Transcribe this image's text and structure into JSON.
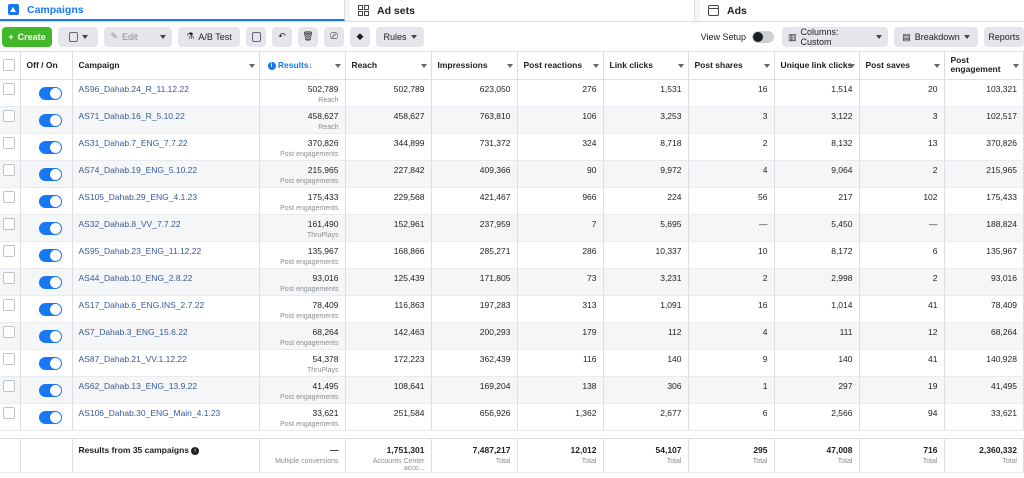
{
  "tabs": {
    "campaigns": "Campaigns",
    "adsets": "Ad sets",
    "ads": "Ads"
  },
  "toolbar": {
    "create": "Create",
    "edit": "Edit",
    "ab_test": "A/B Test",
    "rules": "Rules",
    "view_setup": "View Setup",
    "columns": "Columns: Custom",
    "breakdown": "Breakdown",
    "reports": "Reports"
  },
  "headers": {
    "off_on": "Off / On",
    "campaign": "Campaign",
    "results": "Results",
    "reach": "Reach",
    "impressions": "Impressions",
    "post_reactions": "Post reactions",
    "link_clicks": "Link clicks",
    "post_shares": "Post shares",
    "unique_link_clicks": "Unique link clicks",
    "post_saves": "Post saves",
    "post_engagement": "Post engagement"
  },
  "rows": [
    {
      "name": "AS96_Dahab.24_R_11.12.22",
      "results": "502,789",
      "type": "Reach",
      "reach": "502,789",
      "impr": "623,050",
      "react": "276",
      "clicks": "1,531",
      "shares": "16",
      "unique": "1,514",
      "saves": "20",
      "eng": "103,321"
    },
    {
      "name": "AS71_Dahab.16_R_5.10.22",
      "results": "458,627",
      "type": "Reach",
      "reach": "458,627",
      "impr": "763,810",
      "react": "106",
      "clicks": "3,253",
      "shares": "3",
      "unique": "3,122",
      "saves": "3",
      "eng": "102,517"
    },
    {
      "name": "AS31_Dahab.7_ENG_7.7.22",
      "results": "370,826",
      "type": "Post engagements",
      "reach": "344,899",
      "impr": "731,372",
      "react": "324",
      "clicks": "8,718",
      "shares": "2",
      "unique": "8,132",
      "saves": "13",
      "eng": "370,826"
    },
    {
      "name": "AS74_Dahab.19_ENG_5.10.22",
      "results": "215,965",
      "type": "Post engagements",
      "reach": "227,842",
      "impr": "409,366",
      "react": "90",
      "clicks": "9,972",
      "shares": "4",
      "unique": "9,064",
      "saves": "2",
      "eng": "215,965"
    },
    {
      "name": "AS105_Dahab.29_ENG_4.1.23",
      "results": "175,433",
      "type": "Post engagements",
      "reach": "229,568",
      "impr": "421,467",
      "react": "966",
      "clicks": "224",
      "shares": "56",
      "unique": "217",
      "saves": "102",
      "eng": "175,433"
    },
    {
      "name": "AS32_Dahab.8_VV_7.7.22",
      "results": "161,490",
      "type": "ThruPlays",
      "reach": "152,961",
      "impr": "237,959",
      "react": "7",
      "clicks": "5,695",
      "shares": "—",
      "unique": "5,450",
      "saves": "—",
      "eng": "188,824"
    },
    {
      "name": "AS95_Dahab.23_ENG_11.12.22",
      "results": "135,967",
      "type": "Post engagements",
      "reach": "168,866",
      "impr": "285,271",
      "react": "286",
      "clicks": "10,337",
      "shares": "10",
      "unique": "8,172",
      "saves": "6",
      "eng": "135,967"
    },
    {
      "name": "AS44_Dahab.10_ENG_2.8.22",
      "results": "93,016",
      "type": "Post engagements",
      "reach": "125,439",
      "impr": "171,805",
      "react": "73",
      "clicks": "3,231",
      "shares": "2",
      "unique": "2,998",
      "saves": "2",
      "eng": "93,016"
    },
    {
      "name": "AS17_Dahab.6_ENG.INS_2.7.22",
      "results": "78,409",
      "type": "Post engagements",
      "reach": "116,863",
      "impr": "197,283",
      "react": "313",
      "clicks": "1,091",
      "shares": "16",
      "unique": "1,014",
      "saves": "41",
      "eng": "78,409"
    },
    {
      "name": "AS7_Dahab.3_ENG_15.6.22",
      "results": "68,264",
      "type": "Post engagements",
      "reach": "142,463",
      "impr": "200,293",
      "react": "179",
      "clicks": "112",
      "shares": "4",
      "unique": "111",
      "saves": "12",
      "eng": "68,264"
    },
    {
      "name": "AS87_Dahab.21_VV.1.12.22",
      "results": "54,378",
      "type": "ThruPlays",
      "reach": "172,223",
      "impr": "362,439",
      "react": "116",
      "clicks": "140",
      "shares": "9",
      "unique": "140",
      "saves": "41",
      "eng": "140,928"
    },
    {
      "name": "AS62_Dahab.13_ENG_13.9.22",
      "results": "41,495",
      "type": "Post engagements",
      "reach": "108,641",
      "impr": "169,204",
      "react": "138",
      "clicks": "306",
      "shares": "1",
      "unique": "297",
      "saves": "19",
      "eng": "41,495"
    },
    {
      "name": "AS106_Dahab.30_ENG_Main_4.1.23",
      "results": "33,621",
      "type": "Post engagements",
      "reach": "251,584",
      "impr": "656,926",
      "react": "1,362",
      "clicks": "2,677",
      "shares": "6",
      "unique": "2,566",
      "saves": "94",
      "eng": "33,621"
    }
  ],
  "footer": {
    "label": "Results from 35 campaigns",
    "results": "—",
    "results_sub": "Multiple conversions",
    "reach": "1,751,301",
    "reach_sub": "Accounts Center acco...",
    "impr": "7,487,217",
    "react": "12,012",
    "clicks": "54,107",
    "shares": "295",
    "unique": "47,008",
    "saves": "716",
    "eng": "2,360,332",
    "total": "Total"
  },
  "colors": {
    "accent": "#1877f2",
    "create": "#42b72a",
    "link": "#385898"
  }
}
